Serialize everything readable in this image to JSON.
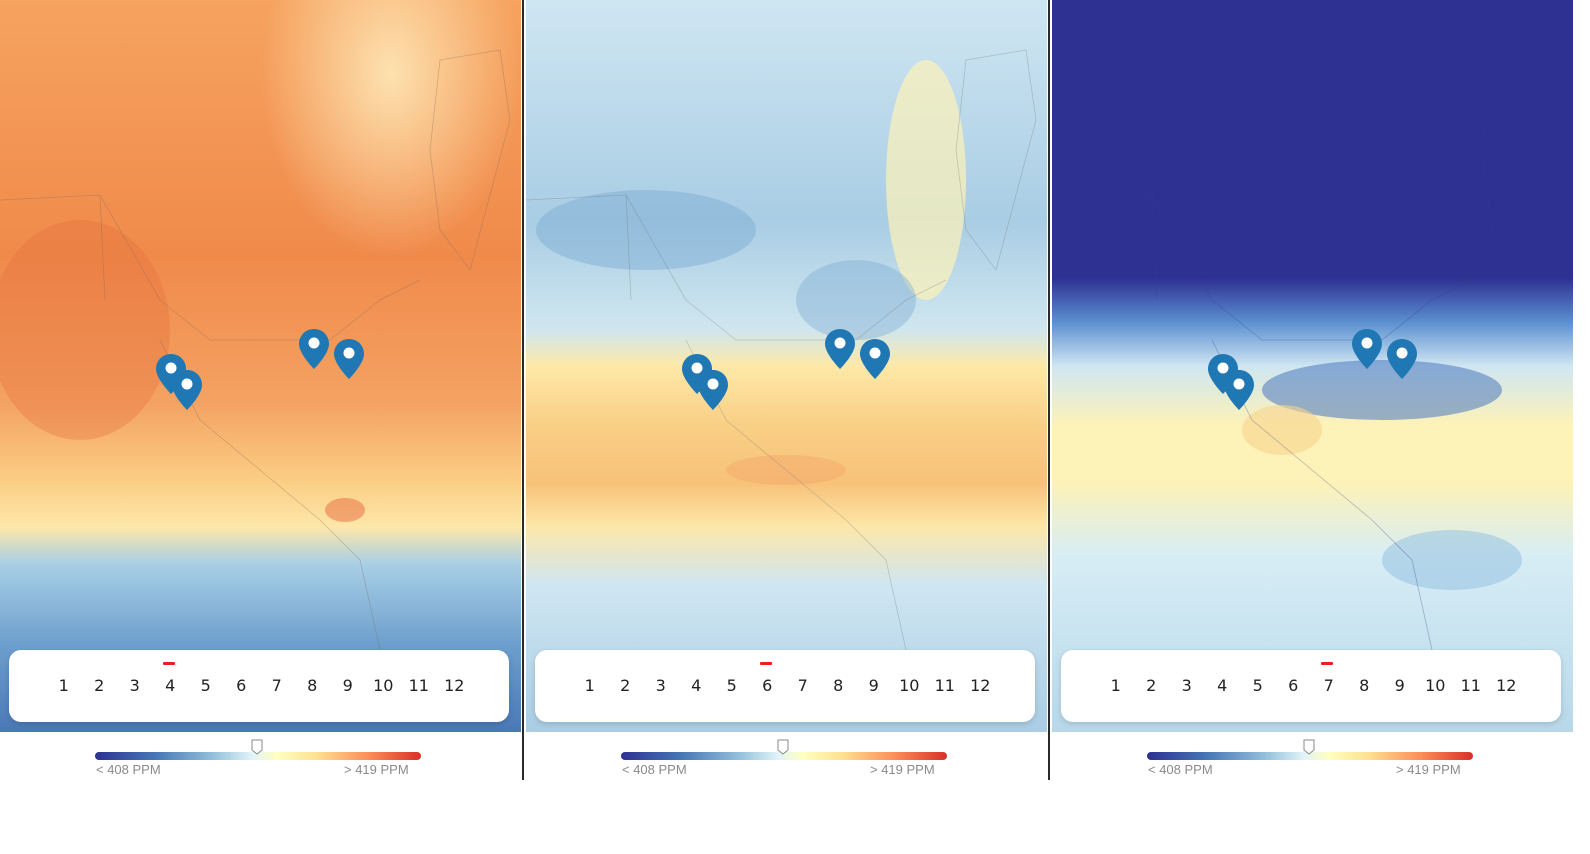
{
  "months": [
    "1",
    "2",
    "3",
    "4",
    "5",
    "6",
    "7",
    "8",
    "9",
    "10",
    "11",
    "12"
  ],
  "legend": {
    "low_label": "< 408 PPM",
    "high_label": "> 419 PPM"
  },
  "colors": {
    "scale": [
      "#2e3192",
      "#4575b4",
      "#91bfdb",
      "#e0f3f8",
      "#ffffbf",
      "#fee090",
      "#fc8d59",
      "#d73027"
    ],
    "marker": "#1f78b4",
    "selected_month_marker": "#e82020"
  },
  "panels": [
    {
      "selected_month": "4",
      "marker_icons": [
        "map-pin-icon",
        "map-pin-icon",
        "map-pin-icon",
        "map-pin-icon"
      ]
    },
    {
      "selected_month": "6",
      "marker_icons": [
        "map-pin-icon",
        "map-pin-icon",
        "map-pin-icon",
        "map-pin-icon"
      ]
    },
    {
      "selected_month": "7",
      "marker_icons": [
        "map-pin-icon",
        "map-pin-icon",
        "map-pin-icon",
        "map-pin-icon"
      ]
    }
  ]
}
